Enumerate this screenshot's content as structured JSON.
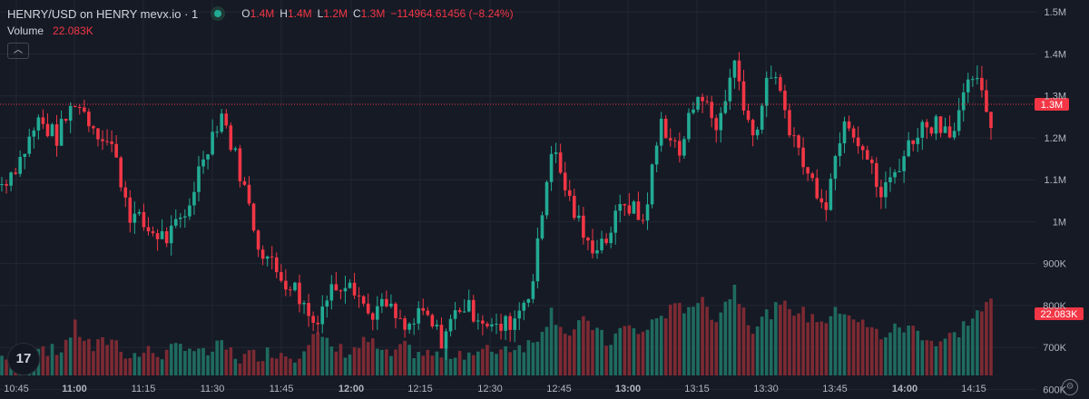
{
  "legend": {
    "symbol": "HENRY/USD on HENRY mevx.io · 1",
    "o_label": "O",
    "o_value": "1.4M",
    "h_label": "H",
    "h_value": "1.4M",
    "l_label": "L",
    "l_value": "1.2M",
    "c_label": "C",
    "c_value": "1.3M",
    "change": "−114964.61456 (−8.24%)"
  },
  "volume_legend": {
    "label": "Volume",
    "value": "22.083K"
  },
  "colors": {
    "up": "#22ab94",
    "down": "#f23645",
    "up_vol": "#1f6b60",
    "down_vol": "#7d2a33",
    "background": "#161a25",
    "grid": "#232733"
  },
  "icons": {
    "collapse": "chevron-up-icon",
    "logo": "tradingview-logo-icon",
    "settings": "gear-icon"
  },
  "chart_data": {
    "type": "candlestick",
    "title": "HENRY/USD on HENRY mevx.io · 1",
    "y_axis": {
      "ticks": [
        "1.5M",
        "1.4M",
        "1.3M",
        "1.2M",
        "1.1M",
        "1M",
        "900K",
        "800K",
        "700K",
        "600K"
      ],
      "ylim": [
        590000,
        1520000
      ]
    },
    "x_axis": {
      "ticks": [
        {
          "label": "10:45",
          "bold": false
        },
        {
          "label": "11:00",
          "bold": true
        },
        {
          "label": "11:15",
          "bold": false
        },
        {
          "label": "11:30",
          "bold": false
        },
        {
          "label": "11:45",
          "bold": false
        },
        {
          "label": "12:00",
          "bold": true
        },
        {
          "label": "12:15",
          "bold": false
        },
        {
          "label": "12:30",
          "bold": false
        },
        {
          "label": "12:45",
          "bold": false
        },
        {
          "label": "13:00",
          "bold": true
        },
        {
          "label": "13:15",
          "bold": false
        },
        {
          "label": "13:30",
          "bold": false
        },
        {
          "label": "13:45",
          "bold": false
        },
        {
          "label": "14:00",
          "bold": true
        },
        {
          "label": "14:15",
          "bold": false
        }
      ]
    },
    "last_price_label": "1.3M",
    "last_price": 1280000,
    "volume_label": "22.083K",
    "close_path": [
      1090000,
      1150000,
      1240000,
      1200000,
      1290000,
      1230000,
      1180000,
      1020000,
      980000,
      960000,
      1010000,
      1160000,
      1260000,
      1120000,
      950000,
      880000,
      840000,
      760000,
      840000,
      870000,
      780000,
      800000,
      740000,
      780000,
      720000,
      800000,
      780000,
      740000,
      770000,
      860000,
      1180000,
      1050000,
      940000,
      960000,
      1050000,
      1000000,
      1240000,
      1160000,
      1320000,
      1220000,
      1380000,
      1200000,
      1360000,
      1230000,
      1110000,
      1050000,
      1260000,
      1180000,
      1060000,
      1140000,
      1220000,
      1240000,
      1220000,
      1350000,
      1240000
    ],
    "volumes_scale_note": "volume bars in relative units",
    "volume_path": [
      8,
      12,
      18,
      10,
      30,
      14,
      22,
      8,
      12,
      10,
      18,
      9,
      16,
      7,
      10,
      12,
      8,
      26,
      14,
      12,
      20,
      8,
      14,
      10,
      9,
      12,
      10,
      14,
      16,
      18,
      42,
      24,
      36,
      18,
      30,
      26,
      40,
      44,
      50,
      38,
      60,
      30,
      42,
      46,
      38,
      36,
      44,
      32,
      24,
      30,
      28,
      18,
      24,
      38,
      48
    ],
    "candles_per_path_point": 4
  }
}
